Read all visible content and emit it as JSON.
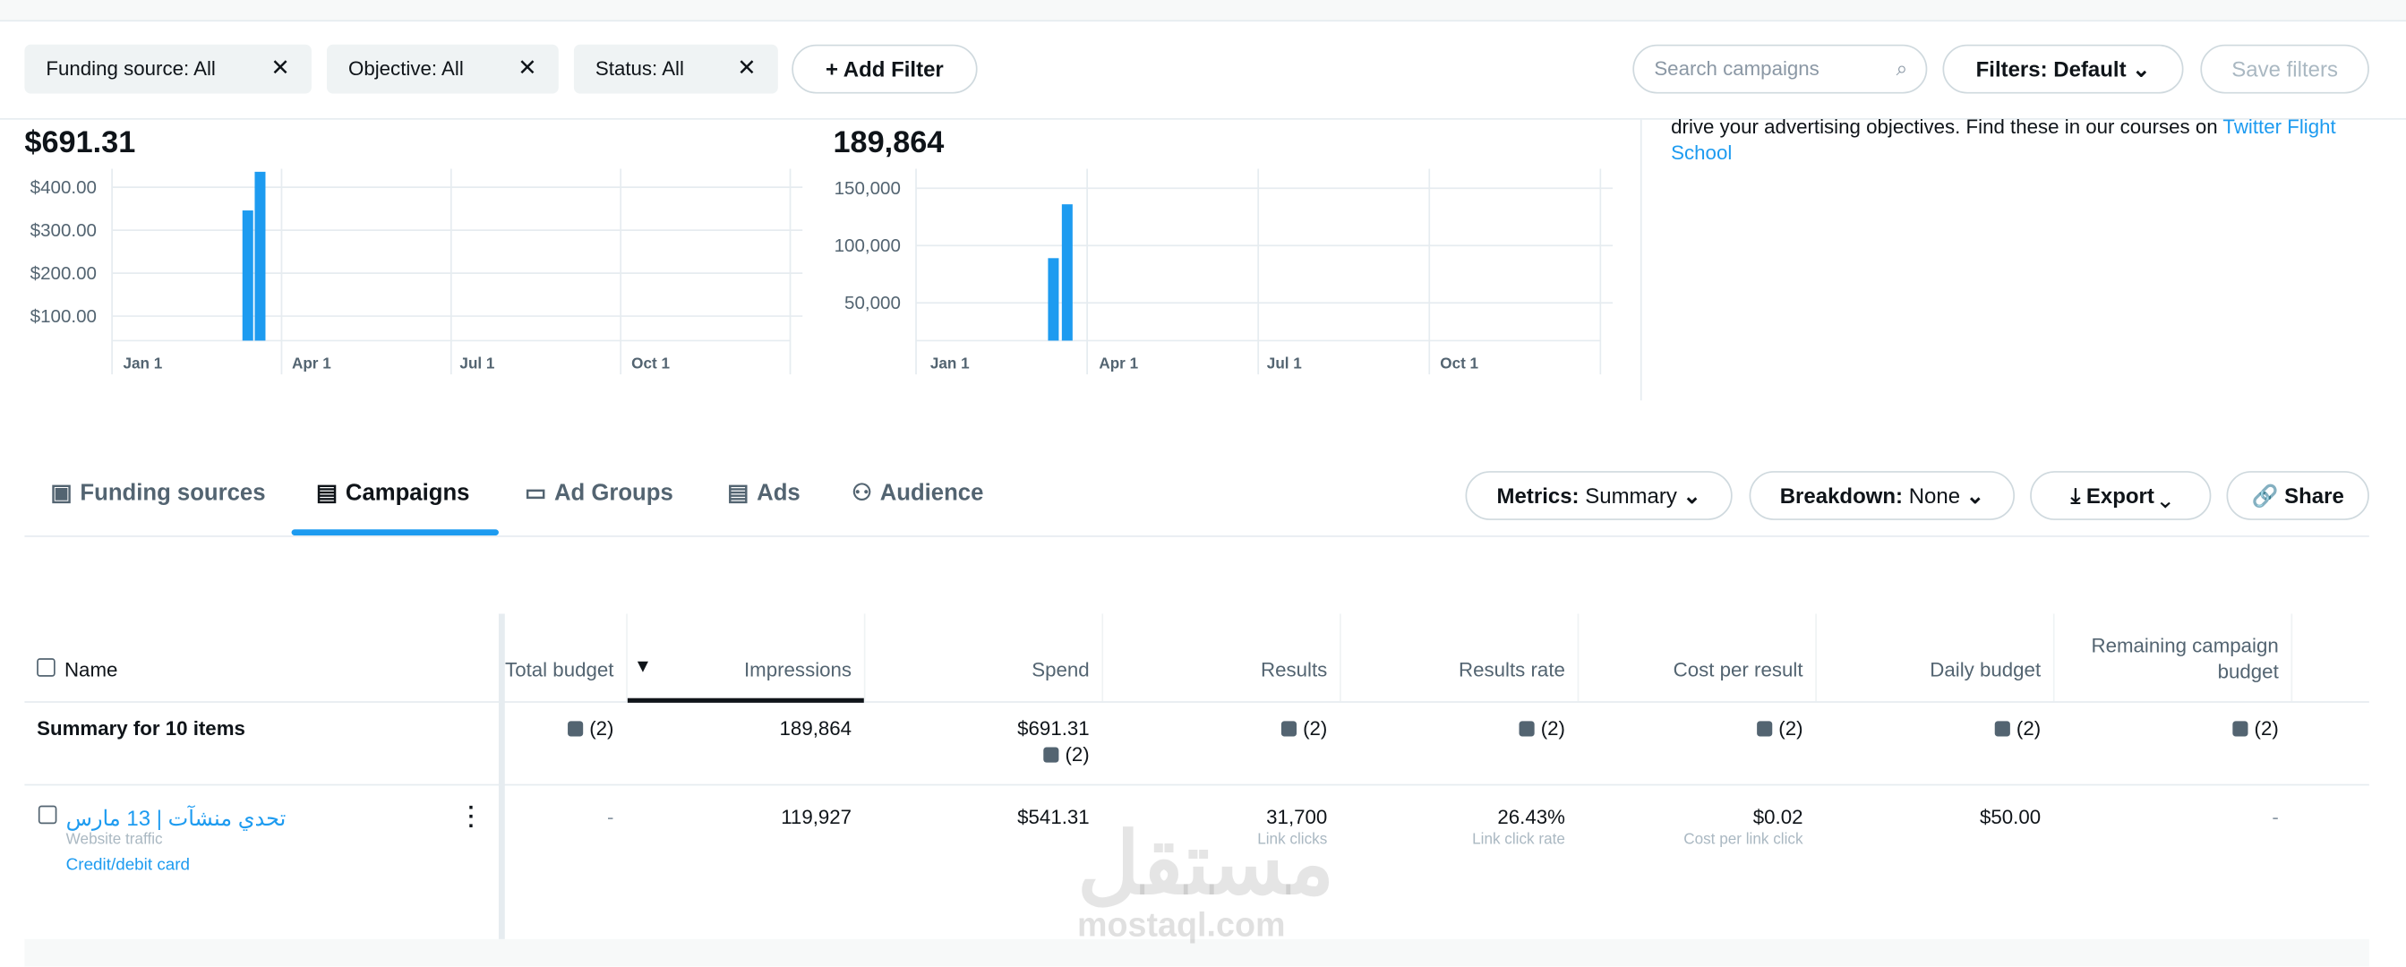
{
  "filters": {
    "chips": [
      "Funding source: All",
      "Objective: All",
      "Status: All"
    ],
    "add": "Add Filter",
    "search_placeholder": "Search campaigns",
    "preset": "Filters: Default",
    "save": "Save filters"
  },
  "charts": [
    {
      "total": "$691.31",
      "ylim": [
        43,
        443
      ],
      "yticks": [
        {
          "value": 400,
          "label": "$400.00"
        },
        {
          "value": 300,
          "label": "$300.00"
        },
        {
          "value": 200,
          "label": "$200.00"
        },
        {
          "value": 100,
          "label": "$100.00"
        }
      ],
      "xticks": [
        "Jan 1",
        "Apr 1",
        "Jul 1",
        "Oct 1"
      ],
      "values": [
        346,
        436
      ],
      "color": "#1d9bf0"
    },
    {
      "total": "189,864",
      "ylim": [
        17000,
        167000
      ],
      "yticks": [
        {
          "value": 150000,
          "label": "150,000"
        },
        {
          "value": 100000,
          "label": "100,000"
        },
        {
          "value": 50000,
          "label": "50,000"
        }
      ],
      "xticks": [
        "Jan 1",
        "Apr 1",
        "Jul 1",
        "Oct 1"
      ],
      "values": [
        89000,
        136000
      ],
      "color": "#1d9bf0"
    }
  ],
  "info": {
    "text": "drive your advertising objectives. Find these in our courses on ",
    "link": "Twitter Flight School"
  },
  "tabs": {
    "items": [
      "Funding sources",
      "Campaigns",
      "Ad Groups",
      "Ads",
      "Audience"
    ],
    "active": 1
  },
  "toolbar": {
    "metrics_label": "Metrics:",
    "metrics": "Summary",
    "breakdown_label": "Breakdown:",
    "breakdown": "None",
    "export": "Export",
    "share": "Share"
  },
  "table": {
    "headers": [
      "Name",
      "Total budget",
      "Impressions",
      "Spend",
      "Results",
      "Results rate",
      "Cost per result",
      "Daily budget",
      "Remaining campaign budget"
    ],
    "summary": [
      "Summary for 10 items",
      "(2)",
      "189,864",
      "$691.31",
      "(2)",
      "(2)",
      "(2)",
      "(2)",
      "(2)"
    ],
    "summary_spend_note": "(2)",
    "rows": [
      {
        "name": "تحدي منشآت | 13 مارس",
        "objective": "Website traffic",
        "funding": "Credit/debit card",
        "cells": [
          "-",
          "119,927",
          "$541.31",
          "31,700",
          "26.43%",
          "$0.02",
          "$50.00",
          "-"
        ],
        "notes": [
          null,
          null,
          null,
          "Link clicks",
          "Link click rate",
          "Cost per link click",
          null,
          null
        ]
      }
    ]
  },
  "watermark": {
    "arabic": "مستقل",
    "latin": "mostaql.com"
  }
}
